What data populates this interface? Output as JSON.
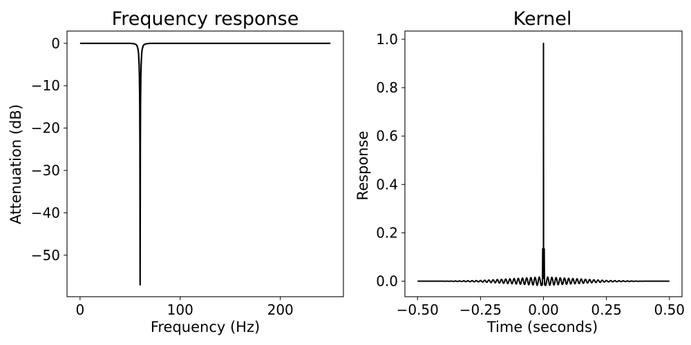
{
  "chart_data": [
    {
      "type": "line",
      "title": "Frequency response",
      "xlabel": "Frequency (Hz)",
      "ylabel": "Attenuation (dB)",
      "xlim": [
        -13,
        263
      ],
      "ylim": [
        -59.8,
        2.9
      ],
      "grid": false,
      "legend": "none",
      "line_color": "#000000",
      "x_ticks": [
        {
          "value": 0,
          "label": "0"
        },
        {
          "value": 100,
          "label": "100"
        },
        {
          "value": 200,
          "label": "200"
        }
      ],
      "y_ticks": [
        {
          "value": 0,
          "label": "0"
        },
        {
          "value": -10,
          "label": "−10"
        },
        {
          "value": -20,
          "label": "−20"
        },
        {
          "value": -30,
          "label": "−30"
        },
        {
          "value": -40,
          "label": "−40"
        },
        {
          "value": -50,
          "label": "−50"
        }
      ],
      "series": [
        {
          "x": [
            0,
            50,
            54,
            56,
            57,
            58,
            58.5,
            59,
            59.3,
            59.6,
            59.8,
            60,
            60.2,
            60.4,
            60.7,
            61,
            61.5,
            62,
            63,
            64,
            66,
            70,
            100,
            150,
            200,
            250
          ],
          "y": [
            0,
            0,
            -0.1,
            -0.3,
            -0.6,
            -1.5,
            -2.6,
            -5,
            -8,
            -14,
            -24,
            -57,
            -24,
            -14,
            -8,
            -5,
            -2.6,
            -1.5,
            -0.6,
            -0.3,
            -0.1,
            0,
            0,
            0,
            0,
            0
          ]
        }
      ]
    },
    {
      "type": "line",
      "title": "Kernel",
      "xlabel": "Time (seconds)",
      "ylabel": "Response",
      "xlim": [
        -0.55,
        0.55
      ],
      "ylim": [
        -0.064,
        1.034
      ],
      "grid": false,
      "legend": "none",
      "line_color": "#000000",
      "x_ticks": [
        {
          "value": -0.5,
          "label": "−0.50"
        },
        {
          "value": -0.25,
          "label": "−0.25"
        },
        {
          "value": 0,
          "label": "0.00"
        },
        {
          "value": 0.25,
          "label": "0.25"
        },
        {
          "value": 0.5,
          "label": "0.50"
        }
      ],
      "y_ticks": [
        {
          "value": 0,
          "label": "0.0"
        },
        {
          "value": 0.2,
          "label": "0.2"
        },
        {
          "value": 0.4,
          "label": "0.4"
        },
        {
          "value": 0.6,
          "label": "0.6"
        },
        {
          "value": 0.8,
          "label": "0.8"
        },
        {
          "value": 1,
          "label": "1.0"
        }
      ],
      "series": [
        {
          "x": [
            -0.5,
            -0.45,
            -0.4,
            -0.35,
            -0.3,
            -0.25,
            -0.2,
            -0.15,
            -0.1,
            -0.05,
            -0.02,
            -0.005,
            0,
            0.005,
            0.02,
            0.05,
            0.1,
            0.15,
            0.2,
            0.25,
            0.3,
            0.35,
            0.4,
            0.45,
            0.5
          ],
          "y": [
            0,
            0,
            0,
            0.001,
            0.002,
            0.003,
            0.006,
            0.009,
            0.012,
            0.015,
            0.017,
            0.018,
            0.983,
            0.018,
            0.017,
            0.015,
            0.012,
            0.009,
            0.006,
            0.003,
            0.002,
            0.001,
            0,
            0,
            0
          ],
          "oscillation_hz": 60
        }
      ]
    }
  ]
}
